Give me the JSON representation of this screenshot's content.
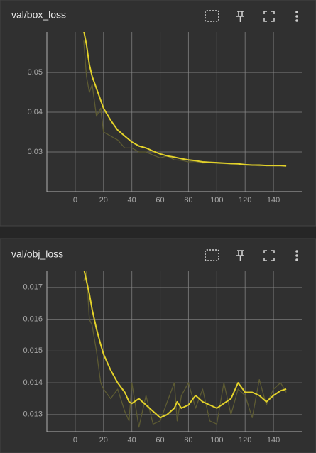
{
  "chart_data": [
    {
      "type": "line",
      "title": "val/box_loss",
      "x": [
        6,
        8,
        10,
        12,
        15,
        18,
        20,
        25,
        30,
        35,
        40,
        45,
        50,
        55,
        60,
        65,
        70,
        75,
        80,
        85,
        90,
        95,
        100,
        105,
        110,
        115,
        120,
        125,
        130,
        135,
        140,
        145,
        149
      ],
      "series": [
        {
          "color": "#5d5b33",
          "values": [
            0.058,
            0.049,
            0.045,
            0.047,
            0.039,
            0.041,
            0.035,
            0.034,
            0.033,
            0.031,
            0.031,
            0.03,
            0.03,
            0.0292,
            0.0285,
            0.029,
            0.028,
            0.0279,
            0.0275,
            0.0276,
            0.0272,
            0.0273,
            0.0271,
            0.0271,
            0.0269,
            0.027,
            0.0266,
            0.0267,
            0.0265,
            0.0266,
            0.0265,
            0.0265,
            0.0264
          ]
        },
        {
          "color": "#e2d12a",
          "values": [
            0.0605,
            0.057,
            0.052,
            0.049,
            0.046,
            0.043,
            0.041,
            0.038,
            0.0355,
            0.034,
            0.0325,
            0.0315,
            0.031,
            0.0302,
            0.0295,
            0.029,
            0.0287,
            0.0283,
            0.028,
            0.0278,
            0.0275,
            0.0274,
            0.0273,
            0.0272,
            0.0271,
            0.027,
            0.0268,
            0.0267,
            0.0267,
            0.0266,
            0.0266,
            0.0266,
            0.0265
          ]
        }
      ],
      "xlim": [
        -20,
        160
      ],
      "xticks": [
        0,
        20,
        40,
        60,
        80,
        100,
        120,
        140
      ],
      "ylim": [
        0.02,
        0.0602
      ],
      "yticks": [
        0.03,
        0.04,
        0.05
      ],
      "grid": true
    },
    {
      "type": "line",
      "title": "val/obj_loss",
      "x": [
        6,
        8,
        10,
        12,
        15,
        18,
        20,
        25,
        30,
        35,
        38,
        40,
        45,
        50,
        55,
        60,
        65,
        70,
        72,
        75,
        80,
        85,
        90,
        95,
        100,
        105,
        110,
        115,
        120,
        125,
        130,
        135,
        140,
        145,
        149
      ],
      "series": [
        {
          "color": "#5d5b33",
          "values": [
            0.0172,
            0.0175,
            0.016,
            0.0158,
            0.015,
            0.014,
            0.0138,
            0.0135,
            0.0138,
            0.0131,
            0.0128,
            0.014,
            0.0126,
            0.0136,
            0.0127,
            0.0128,
            0.0134,
            0.014,
            0.0128,
            0.0136,
            0.014,
            0.0132,
            0.0138,
            0.0128,
            0.0127,
            0.014,
            0.013,
            0.0138,
            0.0136,
            0.0129,
            0.0141,
            0.0133,
            0.0138,
            0.014,
            0.0137
          ]
        },
        {
          "color": "#e2d12a",
          "values": [
            0.0176,
            0.0172,
            0.0168,
            0.0163,
            0.0157,
            0.0152,
            0.0149,
            0.0144,
            0.014,
            0.0137,
            0.0134,
            0.01335,
            0.0135,
            0.0133,
            0.0131,
            0.0129,
            0.013,
            0.0132,
            0.0134,
            0.0132,
            0.0133,
            0.0136,
            0.0134,
            0.0133,
            0.0132,
            0.01335,
            0.0135,
            0.014,
            0.0137,
            0.0137,
            0.0136,
            0.0134,
            0.0136,
            0.01375,
            0.0138
          ]
        }
      ],
      "xlim": [
        -20,
        160
      ],
      "xticks": [
        0,
        20,
        40,
        60,
        80,
        100,
        120,
        140
      ],
      "ylim": [
        0.01246,
        0.01751
      ],
      "yticks": [
        0.013,
        0.014,
        0.015,
        0.016,
        0.017
      ],
      "grid": true
    }
  ]
}
